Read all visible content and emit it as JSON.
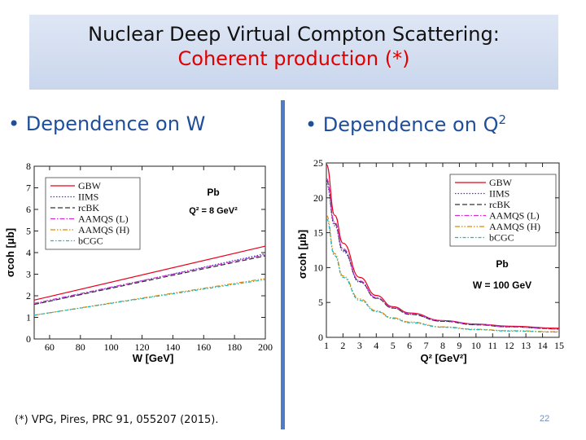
{
  "slide": {
    "title_line1": "Nuclear Deep Virtual Compton Scattering:",
    "title_line2": "Coherent production (*)",
    "bullet_left": "Dependence on W",
    "bullet_right_text": "Dependence on Q",
    "bullet_right_sup": "2",
    "bullet_symbol": "•",
    "footnote": "(*) VPG, Pires, PRC 91,  055207 (2015).",
    "page_number": "22"
  },
  "colors": {
    "title_bg": "#d3ddf0",
    "bullet": "#1f4e9b",
    "subtitle": "#e00000",
    "divider": "#4f7cc4"
  },
  "chart_data": [
    {
      "type": "line",
      "xlabel": "W [GeV]",
      "ylabel": "σcoh [μb]",
      "xlim": [
        50,
        200
      ],
      "ylim": [
        0,
        8
      ],
      "xticks": [
        60,
        80,
        100,
        120,
        140,
        160,
        180,
        200
      ],
      "yticks": [
        0,
        1,
        2,
        3,
        4,
        5,
        6,
        7,
        8
      ],
      "annotation_lines": [
        "Pb",
        "Q² = 8 GeV²"
      ],
      "series": [
        {
          "name": "GBW",
          "color": "#e8001c",
          "dash": "none",
          "x": [
            50,
            200
          ],
          "values": [
            1.8,
            4.3
          ]
        },
        {
          "name": "IIMS",
          "color": "#3b3bcc",
          "dash": "1.5,2",
          "x": [
            50,
            200
          ],
          "values": [
            1.6,
            3.95
          ]
        },
        {
          "name": "rcBK",
          "color": "#333333",
          "dash": "6,3",
          "x": [
            50,
            200
          ],
          "values": [
            1.6,
            3.85
          ]
        },
        {
          "name": "AAMQS (L)",
          "color": "#d12fd1",
          "dash": "6,2,1.5,2",
          "x": [
            50,
            200
          ],
          "values": [
            1.65,
            3.9
          ]
        },
        {
          "name": "AAMQS (H)",
          "color": "#e08a00",
          "dash": "6,2,1.5,2,1.5,2",
          "x": [
            50,
            200
          ],
          "values": [
            1.1,
            2.8
          ]
        },
        {
          "name": "bCGC",
          "color": "#1fb7b7",
          "dash": "4,2,1.5,2",
          "x": [
            50,
            200
          ],
          "values": [
            1.1,
            2.75
          ]
        }
      ]
    },
    {
      "type": "line",
      "xlabel": "Q² [GeV²]",
      "ylabel": "σcoh [μb]",
      "xlim": [
        1,
        15
      ],
      "ylim": [
        0,
        25
      ],
      "xticks": [
        1,
        2,
        3,
        4,
        5,
        6,
        7,
        8,
        9,
        10,
        11,
        12,
        13,
        14,
        15
      ],
      "yticks": [
        0,
        5,
        10,
        15,
        20,
        25
      ],
      "annotation_lines": [
        "Pb",
        "W = 100 GeV"
      ],
      "series": [
        {
          "name": "GBW",
          "color": "#e8001c",
          "dash": "none",
          "x": [
            1,
            1.5,
            2,
            3,
            4,
            5,
            6,
            8,
            10,
            12,
            15
          ],
          "values": [
            24.8,
            17.5,
            13.5,
            8.6,
            6.0,
            4.4,
            3.5,
            2.4,
            1.9,
            1.6,
            1.3
          ]
        },
        {
          "name": "IIMS",
          "color": "#3b3bcc",
          "dash": "1.5,2",
          "x": [
            1,
            1.5,
            2,
            3,
            4,
            5,
            6,
            8,
            10,
            12,
            15
          ],
          "values": [
            22.0,
            16.0,
            12.3,
            7.9,
            5.6,
            4.2,
            3.3,
            2.3,
            1.8,
            1.5,
            1.2
          ]
        },
        {
          "name": "rcBK",
          "color": "#333333",
          "dash": "6,3",
          "x": [
            1,
            1.5,
            2,
            3,
            4,
            5,
            6,
            8,
            10,
            12,
            15
          ],
          "values": [
            22.5,
            16.3,
            12.5,
            8.0,
            5.6,
            4.2,
            3.3,
            2.3,
            1.8,
            1.5,
            1.2
          ]
        },
        {
          "name": "AAMQS (L)",
          "color": "#d12fd1",
          "dash": "6,2,1.5,2",
          "x": [
            1,
            1.5,
            2,
            3,
            4,
            5,
            6,
            8,
            10,
            12,
            15
          ],
          "values": [
            22.8,
            16.5,
            12.7,
            8.1,
            5.7,
            4.3,
            3.4,
            2.4,
            1.9,
            1.5,
            1.2
          ]
        },
        {
          "name": "AAMQS (H)",
          "color": "#e08a00",
          "dash": "6,2,1.5,2,1.5,2",
          "x": [
            1,
            1.5,
            2,
            3,
            4,
            5,
            6,
            8,
            10,
            12,
            15
          ],
          "values": [
            17.5,
            12.0,
            8.8,
            5.5,
            3.8,
            2.8,
            2.2,
            1.5,
            1.15,
            0.95,
            0.8
          ]
        },
        {
          "name": "bCGC",
          "color": "#1fb7b7",
          "dash": "4,2,1.5,2",
          "x": [
            1,
            1.5,
            2,
            3,
            4,
            5,
            6,
            8,
            10,
            12,
            15
          ],
          "values": [
            17.0,
            11.7,
            8.6,
            5.3,
            3.7,
            2.7,
            2.1,
            1.45,
            1.1,
            0.9,
            0.75
          ]
        }
      ]
    }
  ]
}
